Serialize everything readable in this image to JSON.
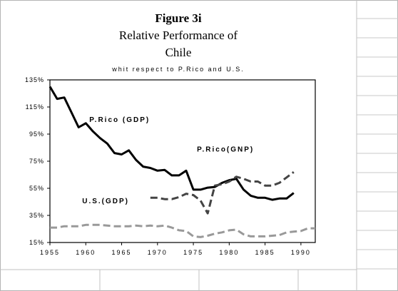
{
  "figure": {
    "number": "Figure 3i",
    "title_line1": "Relative Performance of",
    "title_line2": "Chile",
    "subtitle": "whit respect to P.Rico and U.S."
  },
  "chart_data": {
    "type": "line",
    "title": "Relative Performance of Chile",
    "subtitle": "whit respect to P.Rico and U.S.",
    "xlim": [
      1955,
      1992
    ],
    "ylim": [
      15,
      135
    ],
    "xticks": [
      1955,
      1960,
      1965,
      1970,
      1975,
      1980,
      1985,
      1990
    ],
    "yticks": [
      15,
      35,
      55,
      75,
      95,
      115,
      135
    ],
    "ytick_labels": [
      "15%",
      "35%",
      "55%",
      "75%",
      "95%",
      "115%",
      "135%"
    ],
    "grid": false,
    "series": [
      {
        "name": "P.Rico (GDP)",
        "style": "solid",
        "color": "#000000",
        "label_at": [
          1960.5,
          104
        ],
        "points": [
          [
            1955,
            130
          ],
          [
            1956,
            121
          ],
          [
            1957,
            122
          ],
          [
            1958,
            111
          ],
          [
            1959,
            100
          ],
          [
            1960,
            103
          ],
          [
            1961,
            97
          ],
          [
            1962,
            92
          ],
          [
            1963,
            88
          ],
          [
            1964,
            81
          ],
          [
            1965,
            80
          ],
          [
            1966,
            83
          ],
          [
            1967,
            76
          ],
          [
            1968,
            71
          ],
          [
            1969,
            70
          ],
          [
            1970,
            68
          ],
          [
            1971,
            68.5
          ],
          [
            1972,
            64.5
          ],
          [
            1973,
            64.5
          ],
          [
            1974,
            68
          ],
          [
            1975,
            54
          ],
          [
            1976,
            54
          ],
          [
            1977,
            55.5
          ],
          [
            1978,
            56
          ],
          [
            1979,
            59
          ],
          [
            1980,
            61
          ],
          [
            1981,
            62
          ],
          [
            1982,
            54
          ],
          [
            1983,
            49.5
          ],
          [
            1984,
            48
          ],
          [
            1985,
            48
          ],
          [
            1986,
            46.5
          ],
          [
            1987,
            47.5
          ],
          [
            1988,
            47.5
          ],
          [
            1989,
            51.5
          ]
        ]
      },
      {
        "name": "P.Rico(GNP)",
        "style": "dashed",
        "color": "#444444",
        "label_at": [
          1975.5,
          82
        ],
        "points": [
          [
            1969,
            48
          ],
          [
            1970,
            48
          ],
          [
            1971,
            47
          ],
          [
            1972,
            47
          ],
          [
            1973,
            48.5
          ],
          [
            1974,
            51
          ],
          [
            1975,
            50
          ],
          [
            1976,
            46
          ],
          [
            1977,
            36.5
          ],
          [
            1978,
            57
          ],
          [
            1979,
            58
          ],
          [
            1980,
            60
          ],
          [
            1981,
            63.5
          ],
          [
            1982,
            62
          ],
          [
            1983,
            60
          ],
          [
            1984,
            60
          ],
          [
            1985,
            57
          ],
          [
            1986,
            57
          ],
          [
            1987,
            59
          ],
          [
            1988,
            63
          ],
          [
            1989,
            67
          ]
        ]
      },
      {
        "name": "U.S.(GDP)",
        "style": "dashed",
        "color": "#999999",
        "label_at": [
          1959.5,
          44
        ],
        "points": [
          [
            1955,
            26
          ],
          [
            1956,
            26
          ],
          [
            1957,
            27
          ],
          [
            1958,
            27
          ],
          [
            1959,
            27
          ],
          [
            1960,
            28
          ],
          [
            1961,
            28
          ],
          [
            1962,
            28
          ],
          [
            1963,
            27.5
          ],
          [
            1964,
            27
          ],
          [
            1965,
            27
          ],
          [
            1966,
            27
          ],
          [
            1967,
            27.5
          ],
          [
            1968,
            27
          ],
          [
            1969,
            27.5
          ],
          [
            1970,
            27
          ],
          [
            1971,
            27.5
          ],
          [
            1972,
            26
          ],
          [
            1973,
            24
          ],
          [
            1974,
            23.5
          ],
          [
            1975,
            19.5
          ],
          [
            1976,
            19
          ],
          [
            1977,
            20
          ],
          [
            1978,
            21.5
          ],
          [
            1979,
            22.5
          ],
          [
            1980,
            24
          ],
          [
            1981,
            24.5
          ],
          [
            1982,
            21
          ],
          [
            1983,
            19.5
          ],
          [
            1984,
            19.5
          ],
          [
            1985,
            19.5
          ],
          [
            1986,
            20
          ],
          [
            1987,
            20.5
          ],
          [
            1988,
            22.5
          ],
          [
            1989,
            23
          ],
          [
            1990,
            23.5
          ],
          [
            1991,
            25.5
          ],
          [
            1992,
            25.5
          ]
        ]
      }
    ]
  }
}
